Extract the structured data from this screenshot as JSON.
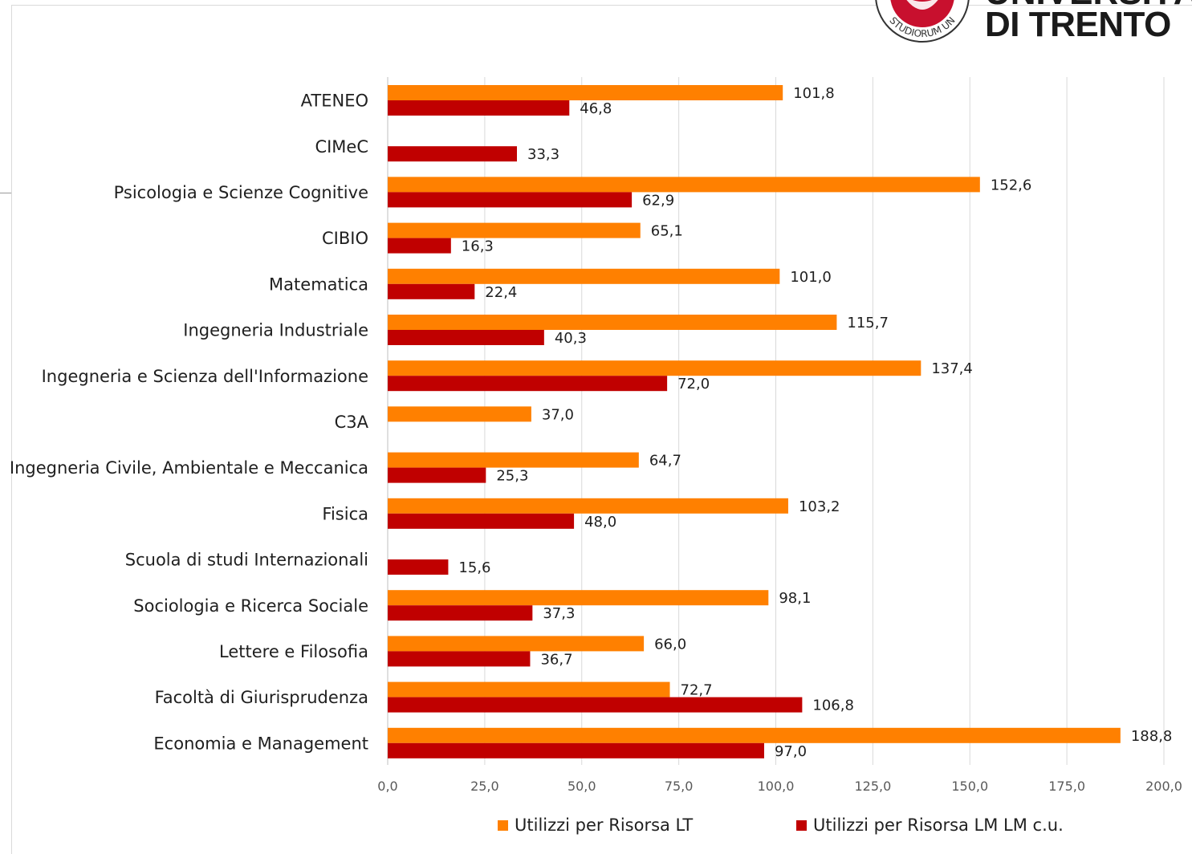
{
  "logo": {
    "text_line1": "UNIVERSITÀ",
    "text_line2": "DI TRENTO",
    "seal_text": "STUDIORUM UN"
  },
  "colors": {
    "lt": "#ff8000",
    "lm": "#c00000",
    "grid": "#d9d9d9",
    "axis": "#bfbfbf",
    "text": "#1f1f1f"
  },
  "chart_data": {
    "type": "bar",
    "orientation": "horizontal",
    "title": "",
    "xlabel": "",
    "ylabel": "",
    "xlim": [
      0,
      200
    ],
    "grid": true,
    "legend_position": "bottom",
    "ticks": [
      "0,0",
      "25,0",
      "50,0",
      "75,0",
      "100,0",
      "125,0",
      "150,0",
      "175,0",
      "200,0"
    ],
    "tick_values": [
      0,
      25,
      50,
      75,
      100,
      125,
      150,
      175,
      200
    ],
    "categories": [
      "ATENEO",
      "CIMeC",
      "Psicologia e Scienze Cognitive",
      "CIBIO",
      "Matematica",
      "Ingegneria Industriale",
      "Ingegneria e Scienza dell'Informazione",
      "C3A",
      "Ingegneria Civile, Ambientale e Meccanica",
      "Fisica",
      "Scuola di studi Internazionali",
      "Sociologia e Ricerca Sociale",
      "Lettere e Filosofia",
      "Facoltà di Giurisprudenza",
      "Economia e Management"
    ],
    "series": [
      {
        "name": "Utilizzi per Risorsa LT",
        "values": [
          101.8,
          null,
          152.6,
          65.1,
          101.0,
          115.7,
          137.4,
          37.0,
          64.7,
          103.2,
          null,
          98.1,
          66.0,
          72.7,
          188.8
        ],
        "labels": [
          "101,8",
          "",
          "152,6",
          "65,1",
          "101,0",
          "115,7",
          "137,4",
          "37,0",
          "64,7",
          "103,2",
          "",
          "98,1",
          "66,0",
          "72,7",
          "188,8"
        ]
      },
      {
        "name": "Utilizzi per Risorsa LM LM c.u.",
        "values": [
          46.8,
          33.3,
          62.9,
          16.3,
          22.4,
          40.3,
          72.0,
          null,
          25.3,
          48.0,
          15.6,
          37.3,
          36.7,
          106.8,
          97.0
        ],
        "labels": [
          "46,8",
          "33,3",
          "62,9",
          "16,3",
          "22,4",
          "40,3",
          "72,0",
          "",
          "25,3",
          "48,0",
          "15,6",
          "37,3",
          "36,7",
          "106,8",
          "97,0"
        ]
      }
    ]
  }
}
